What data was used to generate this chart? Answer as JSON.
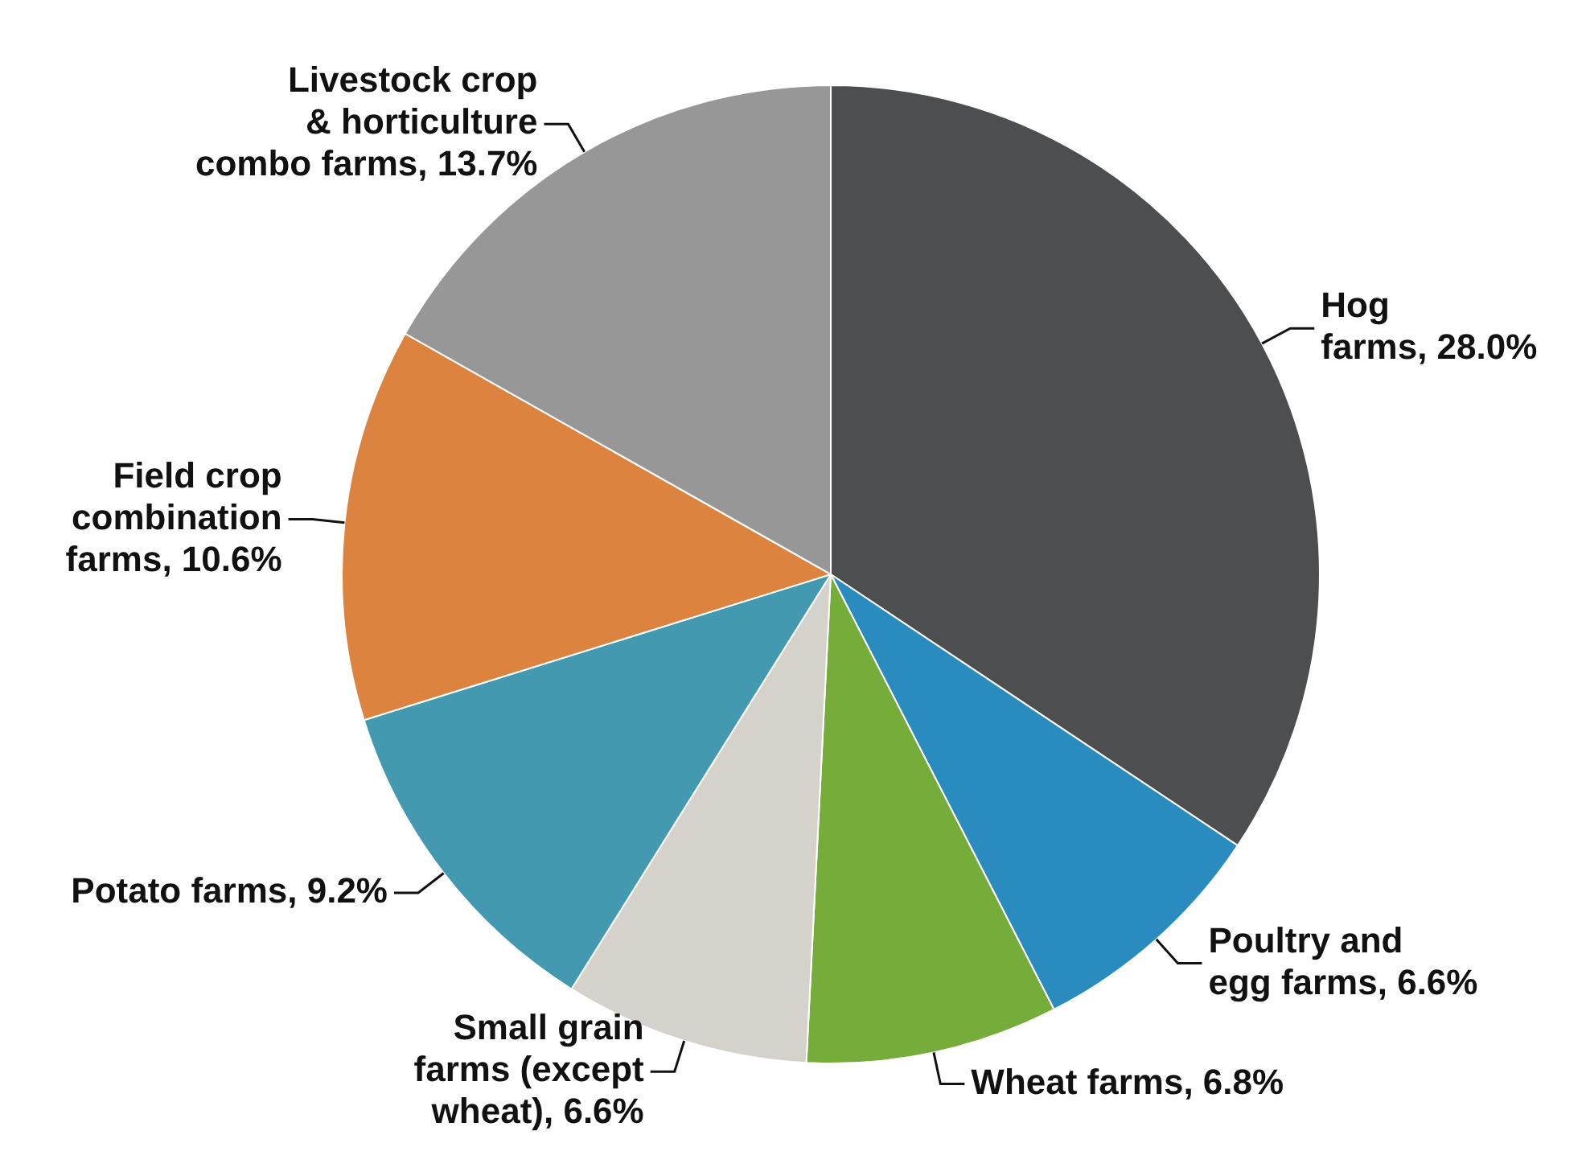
{
  "chart_data": {
    "type": "pie",
    "categories": [
      "Hog farms",
      "Poultry and egg farms",
      "Wheat farms",
      "Small grain farms (except wheat)",
      "Potato farms",
      "Field crop combination farms",
      "Livestock crop & horticulture combo farms"
    ],
    "values": [
      28.0,
      6.6,
      6.8,
      6.6,
      9.2,
      10.6,
      13.7
    ],
    "value_labels": [
      "28.0%",
      "6.6%",
      "6.8%",
      "6.6%",
      "9.2%",
      "10.6%",
      "13.7%"
    ],
    "colors": [
      "#4d4e50",
      "#2a8bbf",
      "#76ad3a",
      "#d4d2ca",
      "#4399b0",
      "#dc843f",
      "#979797"
    ]
  }
}
